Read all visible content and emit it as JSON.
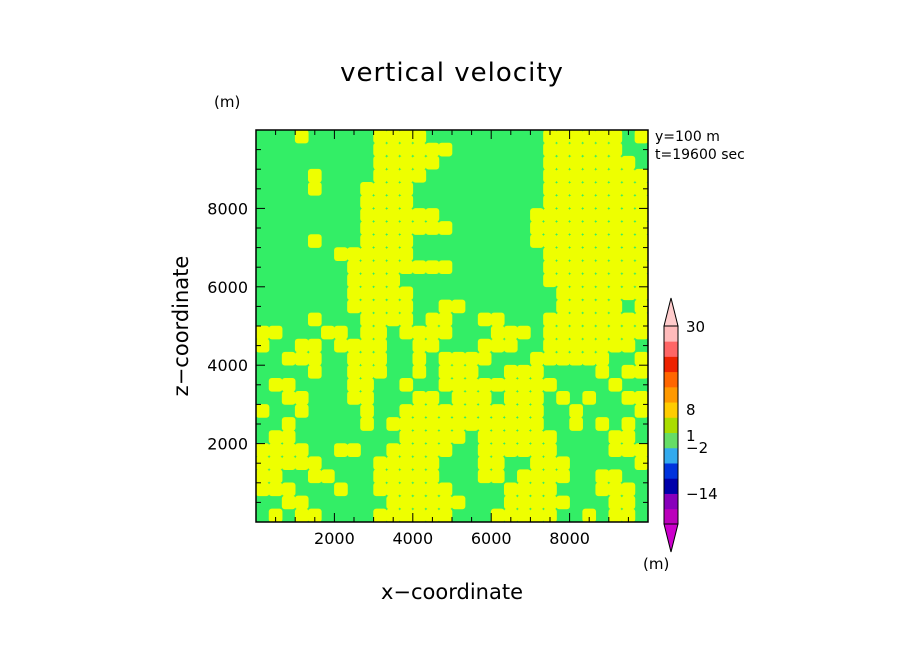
{
  "chart_data": {
    "type": "heatmap",
    "title": "vertical velocity",
    "xlabel": "x−coordinate",
    "ylabel": "z−coordinate",
    "y_unit": "(m)",
    "info_lines": [
      "y=100 m",
      "t=19600 sec"
    ],
    "xlim": [
      0,
      10000
    ],
    "ylim": [
      0,
      10000
    ],
    "x_ticks": [
      2000,
      4000,
      6000,
      8000
    ],
    "x_tick_labels": [
      "2000",
      "4000",
      "6000",
      "8000"
    ],
    "y_ticks": [
      2000,
      4000,
      6000,
      8000
    ],
    "y_tick_labels": [
      "2000",
      "4000",
      "6000",
      "8000"
    ],
    "fill_colors": {
      "low": "#33ee66",
      "high": "#eeff00"
    },
    "colorbar": {
      "unit": "(m)",
      "tick_labels": [
        "30",
        "8",
        "1",
        "−2",
        "−14"
      ],
      "segments_bottom_to_top": [
        "#bb00bb",
        "#8800bb",
        "#0000aa",
        "#0033dd",
        "#33aaee",
        "#66dd66",
        "#aadd00",
        "#ffcc00",
        "#ff9900",
        "#ff6600",
        "#ee2200",
        "#ff6666",
        "#ffbbbb"
      ],
      "extend_colors": {
        "top": "#ffcccc",
        "bottom": "#cc00cc"
      }
    },
    "field_grid_note": "rows bottom-to-top (z), columns left-to-right (x); 1 = yellow (higher), 0 = green (lower)",
    "field": [
      [
        0,
        1,
        0,
        1,
        1,
        0,
        0,
        0,
        0,
        1,
        1,
        1,
        1,
        1,
        1,
        0,
        0,
        0,
        1,
        1,
        1,
        1,
        1,
        0,
        0,
        1,
        0,
        1,
        1,
        0
      ],
      [
        0,
        0,
        1,
        1,
        0,
        0,
        0,
        0,
        0,
        0,
        1,
        1,
        1,
        1,
        1,
        1,
        0,
        0,
        0,
        1,
        1,
        1,
        1,
        1,
        0,
        0,
        0,
        1,
        1,
        0
      ],
      [
        1,
        1,
        1,
        0,
        0,
        0,
        1,
        0,
        0,
        1,
        1,
        1,
        1,
        1,
        1,
        0,
        0,
        0,
        0,
        1,
        1,
        1,
        1,
        0,
        0,
        0,
        1,
        1,
        1,
        0
      ],
      [
        1,
        1,
        0,
        0,
        1,
        1,
        0,
        0,
        0,
        1,
        1,
        1,
        1,
        1,
        0,
        0,
        0,
        1,
        1,
        0,
        1,
        1,
        1,
        1,
        0,
        0,
        1,
        1,
        0,
        0
      ],
      [
        1,
        1,
        1,
        1,
        1,
        0,
        0,
        0,
        0,
        1,
        1,
        1,
        1,
        1,
        0,
        0,
        0,
        1,
        1,
        0,
        0,
        1,
        1,
        1,
        0,
        0,
        0,
        0,
        0,
        1
      ],
      [
        1,
        1,
        1,
        1,
        0,
        0,
        1,
        1,
        0,
        0,
        1,
        1,
        1,
        1,
        1,
        0,
        0,
        1,
        1,
        1,
        1,
        1,
        1,
        0,
        0,
        0,
        0,
        1,
        1,
        1
      ],
      [
        0,
        1,
        1,
        0,
        0,
        0,
        0,
        0,
        0,
        0,
        0,
        1,
        1,
        1,
        1,
        1,
        0,
        1,
        1,
        1,
        1,
        1,
        1,
        0,
        0,
        0,
        0,
        1,
        1,
        0
      ],
      [
        0,
        0,
        1,
        0,
        0,
        0,
        0,
        0,
        1,
        0,
        1,
        1,
        1,
        1,
        1,
        1,
        1,
        1,
        1,
        1,
        1,
        1,
        0,
        0,
        1,
        0,
        1,
        0,
        1,
        0
      ],
      [
        1,
        0,
        0,
        1,
        0,
        0,
        0,
        0,
        1,
        0,
        0,
        1,
        1,
        1,
        1,
        1,
        1,
        1,
        1,
        1,
        1,
        1,
        0,
        0,
        1,
        0,
        0,
        0,
        0,
        1
      ],
      [
        0,
        0,
        1,
        1,
        0,
        0,
        0,
        1,
        1,
        0,
        0,
        0,
        1,
        1,
        0,
        1,
        1,
        1,
        0,
        1,
        1,
        1,
        0,
        1,
        0,
        1,
        0,
        0,
        1,
        1
      ],
      [
        0,
        1,
        1,
        0,
        0,
        0,
        0,
        1,
        1,
        0,
        0,
        1,
        0,
        0,
        1,
        1,
        1,
        1,
        1,
        1,
        1,
        1,
        1,
        0,
        0,
        0,
        0,
        1,
        0,
        0
      ],
      [
        0,
        0,
        0,
        0,
        1,
        0,
        0,
        1,
        1,
        1,
        0,
        0,
        1,
        0,
        1,
        1,
        1,
        0,
        0,
        1,
        1,
        1,
        0,
        0,
        0,
        0,
        1,
        0,
        1,
        1
      ],
      [
        0,
        0,
        1,
        1,
        1,
        0,
        0,
        1,
        1,
        1,
        0,
        0,
        1,
        0,
        1,
        1,
        1,
        1,
        0,
        0,
        0,
        1,
        1,
        1,
        1,
        1,
        1,
        0,
        0,
        1
      ],
      [
        1,
        0,
        0,
        1,
        1,
        0,
        1,
        1,
        1,
        1,
        0,
        0,
        1,
        1,
        0,
        0,
        0,
        1,
        1,
        1,
        0,
        0,
        1,
        1,
        1,
        1,
        1,
        1,
        1,
        0
      ],
      [
        1,
        1,
        0,
        0,
        0,
        1,
        1,
        0,
        1,
        1,
        0,
        1,
        1,
        1,
        1,
        0,
        0,
        0,
        1,
        1,
        1,
        0,
        1,
        1,
        1,
        1,
        1,
        1,
        1,
        1
      ],
      [
        0,
        0,
        0,
        0,
        1,
        0,
        0,
        0,
        1,
        1,
        1,
        1,
        0,
        1,
        1,
        0,
        0,
        1,
        1,
        0,
        0,
        0,
        1,
        1,
        1,
        1,
        1,
        1,
        1,
        1
      ],
      [
        0,
        0,
        0,
        0,
        0,
        0,
        0,
        1,
        1,
        1,
        1,
        1,
        0,
        0,
        1,
        1,
        0,
        0,
        0,
        0,
        0,
        0,
        0,
        1,
        1,
        1,
        1,
        1,
        0,
        1
      ],
      [
        0,
        0,
        0,
        0,
        0,
        0,
        0,
        1,
        1,
        1,
        1,
        1,
        0,
        0,
        0,
        0,
        0,
        0,
        0,
        0,
        0,
        0,
        0,
        1,
        1,
        1,
        1,
        1,
        1,
        1
      ],
      [
        0,
        0,
        0,
        0,
        0,
        0,
        0,
        1,
        1,
        1,
        1,
        0,
        0,
        0,
        0,
        0,
        0,
        0,
        0,
        0,
        0,
        0,
        1,
        1,
        1,
        1,
        1,
        1,
        1,
        1
      ],
      [
        0,
        0,
        0,
        0,
        0,
        0,
        0,
        1,
        1,
        1,
        1,
        1,
        1,
        1,
        1,
        0,
        0,
        0,
        0,
        0,
        0,
        0,
        1,
        1,
        1,
        1,
        1,
        1,
        1,
        1
      ],
      [
        0,
        0,
        0,
        0,
        0,
        0,
        1,
        1,
        1,
        1,
        1,
        1,
        0,
        0,
        0,
        0,
        0,
        0,
        0,
        0,
        0,
        0,
        1,
        1,
        1,
        1,
        1,
        1,
        1,
        1
      ],
      [
        0,
        0,
        0,
        0,
        1,
        0,
        0,
        0,
        1,
        1,
        1,
        1,
        0,
        0,
        0,
        0,
        0,
        0,
        0,
        0,
        0,
        1,
        1,
        1,
        1,
        1,
        1,
        1,
        1,
        1
      ],
      [
        0,
        0,
        0,
        0,
        0,
        0,
        0,
        0,
        1,
        1,
        1,
        1,
        1,
        1,
        1,
        0,
        0,
        0,
        0,
        0,
        0,
        1,
        1,
        1,
        1,
        1,
        1,
        1,
        1,
        1
      ],
      [
        0,
        0,
        0,
        0,
        0,
        0,
        0,
        0,
        1,
        1,
        1,
        1,
        1,
        1,
        0,
        0,
        0,
        0,
        0,
        0,
        0,
        1,
        1,
        1,
        1,
        1,
        1,
        1,
        1,
        1
      ],
      [
        0,
        0,
        0,
        0,
        0,
        0,
        0,
        0,
        1,
        1,
        1,
        1,
        0,
        0,
        0,
        0,
        0,
        0,
        0,
        0,
        0,
        0,
        1,
        1,
        1,
        1,
        1,
        1,
        1,
        1
      ],
      [
        0,
        0,
        0,
        0,
        1,
        0,
        0,
        0,
        1,
        1,
        1,
        1,
        0,
        0,
        0,
        0,
        0,
        0,
        0,
        0,
        0,
        0,
        1,
        1,
        1,
        1,
        1,
        1,
        1,
        1
      ],
      [
        0,
        0,
        0,
        0,
        1,
        0,
        0,
        0,
        0,
        1,
        1,
        1,
        1,
        0,
        0,
        0,
        0,
        0,
        0,
        0,
        0,
        0,
        1,
        1,
        1,
        1,
        1,
        1,
        1,
        1
      ],
      [
        0,
        0,
        0,
        0,
        0,
        0,
        0,
        0,
        0,
        1,
        1,
        1,
        1,
        1,
        0,
        0,
        0,
        0,
        0,
        0,
        0,
        0,
        1,
        1,
        1,
        1,
        1,
        1,
        1,
        0
      ],
      [
        0,
        0,
        0,
        0,
        0,
        0,
        0,
        0,
        0,
        1,
        1,
        1,
        1,
        1,
        1,
        0,
        0,
        0,
        0,
        0,
        0,
        0,
        1,
        1,
        1,
        1,
        1,
        1,
        0,
        0
      ],
      [
        0,
        0,
        0,
        1,
        0,
        0,
        0,
        0,
        0,
        1,
        1,
        1,
        1,
        0,
        0,
        0,
        0,
        0,
        0,
        0,
        0,
        0,
        1,
        1,
        1,
        1,
        1,
        1,
        0,
        1
      ]
    ]
  }
}
